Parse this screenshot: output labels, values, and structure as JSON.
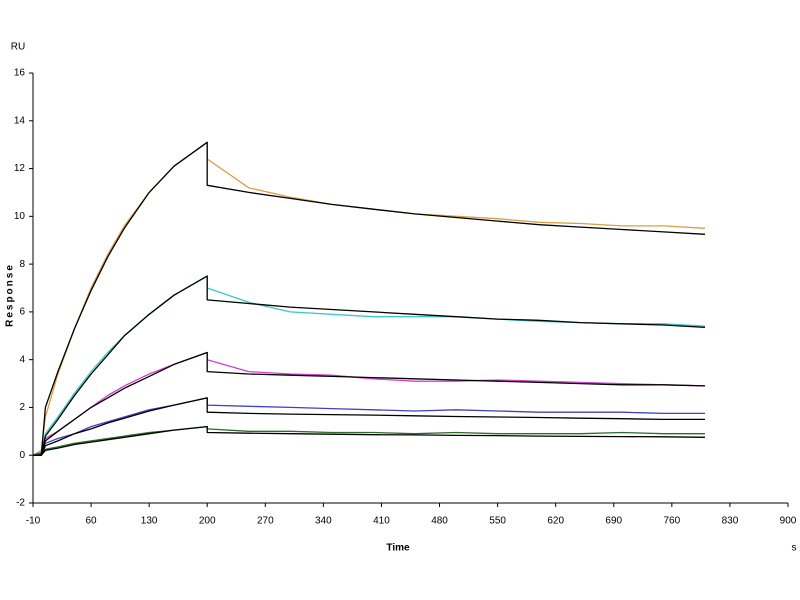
{
  "chart_data": {
    "type": "line",
    "y_unit": "RU",
    "y_label": "Response",
    "x_label": "Time",
    "x_unit": "s",
    "x": [
      -10,
      0,
      5,
      20,
      40,
      60,
      80,
      100,
      130,
      160,
      200,
      200,
      250,
      300,
      350,
      400,
      450,
      500,
      550,
      600,
      650,
      700,
      750,
      800
    ],
    "series": [
      {
        "color": "#d9a040",
        "values": [
          0,
          0.2,
          1.6,
          3.4,
          5.3,
          7.0,
          8.4,
          9.6,
          11.0,
          12.1,
          13.1,
          12.4,
          11.2,
          10.8,
          10.5,
          10.3,
          10.1,
          10.0,
          9.9,
          9.75,
          9.7,
          9.6,
          9.6,
          9.5
        ]
      },
      {
        "color": "#3cc8c8",
        "values": [
          0,
          0.1,
          0.9,
          1.6,
          2.6,
          3.5,
          4.3,
          5.0,
          5.9,
          6.7,
          7.5,
          7.0,
          6.4,
          6.0,
          5.9,
          5.8,
          5.8,
          5.8,
          5.7,
          5.6,
          5.55,
          5.5,
          5.5,
          5.4
        ]
      },
      {
        "color": "#d040d0",
        "values": [
          0,
          0.1,
          0.7,
          1.0,
          1.5,
          2.0,
          2.5,
          2.9,
          3.4,
          3.8,
          4.3,
          4.0,
          3.5,
          3.4,
          3.35,
          3.2,
          3.1,
          3.1,
          3.15,
          3.1,
          3.05,
          3.0,
          2.95,
          2.9
        ]
      },
      {
        "color": "#4040c0",
        "values": [
          0,
          0.1,
          0.5,
          0.7,
          0.9,
          1.2,
          1.4,
          1.6,
          1.9,
          2.1,
          2.4,
          2.1,
          2.05,
          2.0,
          1.95,
          1.9,
          1.85,
          1.9,
          1.85,
          1.8,
          1.8,
          1.8,
          1.75,
          1.75
        ]
      },
      {
        "color": "#2e6b2e",
        "values": [
          0,
          0.05,
          0.25,
          0.35,
          0.5,
          0.6,
          0.7,
          0.8,
          0.95,
          1.05,
          1.2,
          1.1,
          1.0,
          1.0,
          0.95,
          0.95,
          0.9,
          0.95,
          0.9,
          0.9,
          0.9,
          0.95,
          0.9,
          0.9
        ]
      },
      {
        "color": "#000000",
        "values": [
          0,
          0,
          2.0,
          3.5,
          5.3,
          6.9,
          8.3,
          9.5,
          11.0,
          12.1,
          13.1,
          11.3,
          11.0,
          10.75,
          10.5,
          10.3,
          10.1,
          9.95,
          9.8,
          9.65,
          9.55,
          9.45,
          9.35,
          9.25
        ]
      },
      {
        "color": "#000000",
        "values": [
          0,
          0,
          0.8,
          1.5,
          2.5,
          3.4,
          4.2,
          5.0,
          5.9,
          6.7,
          7.5,
          6.5,
          6.35,
          6.2,
          6.1,
          6.0,
          5.9,
          5.8,
          5.7,
          5.65,
          5.55,
          5.5,
          5.45,
          5.35
        ]
      },
      {
        "color": "#000000",
        "values": [
          0,
          0,
          0.6,
          1.0,
          1.5,
          2.0,
          2.4,
          2.8,
          3.3,
          3.8,
          4.3,
          3.5,
          3.4,
          3.35,
          3.3,
          3.25,
          3.2,
          3.15,
          3.1,
          3.05,
          3.0,
          2.95,
          2.95,
          2.9
        ]
      },
      {
        "color": "#000000",
        "values": [
          0,
          0,
          0.4,
          0.6,
          0.9,
          1.1,
          1.35,
          1.55,
          1.85,
          2.1,
          2.4,
          1.8,
          1.75,
          1.72,
          1.7,
          1.68,
          1.65,
          1.62,
          1.6,
          1.58,
          1.55,
          1.53,
          1.5,
          1.5
        ]
      },
      {
        "color": "#000000",
        "values": [
          0,
          0,
          0.2,
          0.3,
          0.45,
          0.55,
          0.65,
          0.75,
          0.9,
          1.05,
          1.2,
          0.95,
          0.92,
          0.9,
          0.88,
          0.86,
          0.85,
          0.83,
          0.82,
          0.8,
          0.79,
          0.78,
          0.77,
          0.75
        ]
      }
    ],
    "xlim": [
      -10,
      900
    ],
    "xticks": [
      -10,
      60,
      130,
      200,
      270,
      340,
      410,
      480,
      550,
      620,
      690,
      760,
      830,
      900
    ],
    "ylim": [
      -2,
      16
    ],
    "yticks": [
      -2,
      0,
      2,
      4,
      6,
      8,
      10,
      12,
      14,
      16
    ]
  }
}
